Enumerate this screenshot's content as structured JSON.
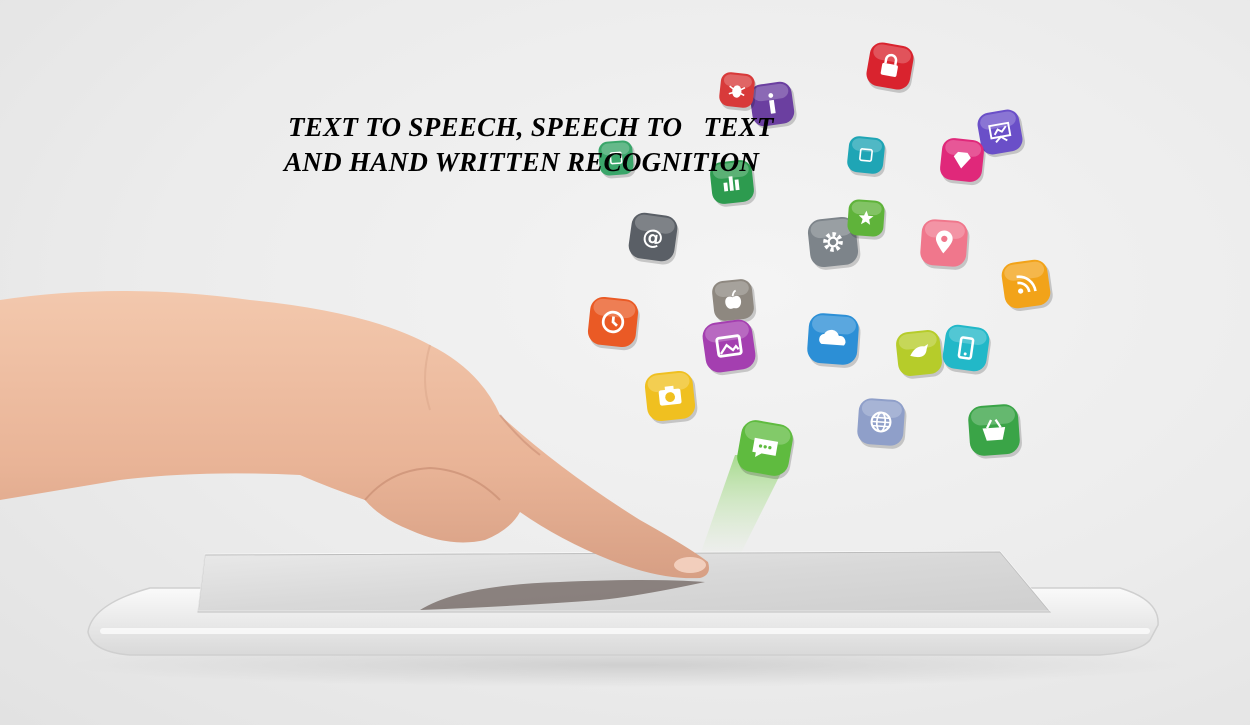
{
  "headline": {
    "line1": "TEXT TO SPEECH, SPEECH TO   TEXT",
    "line2": "AND HAND WRITTEN RECOGNITION"
  },
  "icons": [
    {
      "name": "lock-icon",
      "color": "#d9232e",
      "glyph": "lock"
    },
    {
      "name": "info-icon",
      "color": "#6b3fa0",
      "glyph": "info"
    },
    {
      "name": "bug-icon",
      "color": "#d83a3a",
      "glyph": "bug"
    },
    {
      "name": "presentation-icon",
      "color": "#6a4fc8",
      "glyph": "chart-board"
    },
    {
      "name": "diamond-icon",
      "color": "#e0287a",
      "glyph": "diamond"
    },
    {
      "name": "chart-icon",
      "color": "#2d9b4f",
      "glyph": "bars"
    },
    {
      "name": "email-at-icon",
      "color": "#5a5f66",
      "glyph": "at"
    },
    {
      "name": "settings-gear-icon",
      "color": "#7d848a",
      "glyph": "gear"
    },
    {
      "name": "star-icon",
      "color": "#5fb33a",
      "glyph": "star"
    },
    {
      "name": "map-pin-icon",
      "color": "#f0778c",
      "glyph": "pin"
    },
    {
      "name": "rss-icon",
      "color": "#f2a319",
      "glyph": "rss"
    },
    {
      "name": "clock-icon",
      "color": "#ea5a25",
      "glyph": "clock"
    },
    {
      "name": "apple-icon",
      "color": "#8e8880",
      "glyph": "apple"
    },
    {
      "name": "photo-gallery-icon",
      "color": "#a43fb0",
      "glyph": "photo"
    },
    {
      "name": "cloud-icon",
      "color": "#2c8fd6",
      "glyph": "cloud"
    },
    {
      "name": "bird-icon",
      "color": "#b6cc2a",
      "glyph": "bird"
    },
    {
      "name": "mobile-icon",
      "color": "#22b8c8",
      "glyph": "mobile"
    },
    {
      "name": "camera-icon",
      "color": "#f0c020",
      "glyph": "camera"
    },
    {
      "name": "globe-icon",
      "color": "#8f9fc9",
      "glyph": "globe"
    },
    {
      "name": "shopping-basket-icon",
      "color": "#3aa447",
      "glyph": "basket"
    },
    {
      "name": "chat-bubble-icon",
      "color": "#5fbb3f",
      "glyph": "chat"
    },
    {
      "name": "teal-app-icon",
      "color": "#1fa5b5",
      "glyph": "square"
    },
    {
      "name": "green-app-icon",
      "color": "#3aa66a",
      "glyph": "square"
    }
  ]
}
